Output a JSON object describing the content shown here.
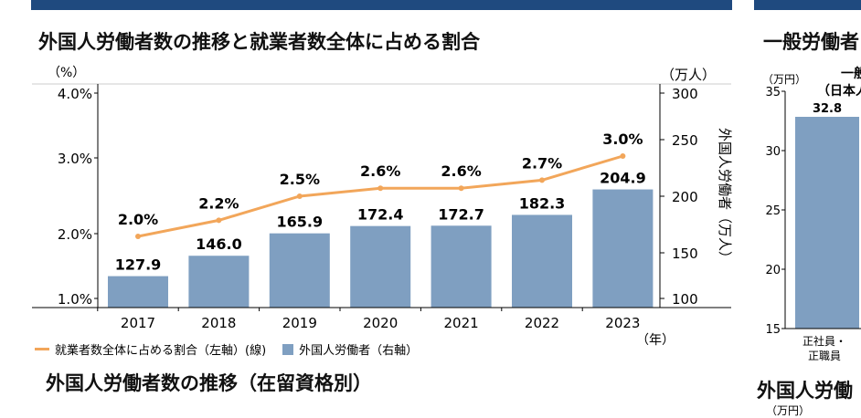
{
  "left_panel": {
    "title": "外国人労働者数の推移と就業者数全体に占める割合",
    "next_title": "外国人労働者数の推移（在留資格別）"
  },
  "right_panel": {
    "title": "一般労働者",
    "unit": "（万円）",
    "subtitle_line1": "一般",
    "subtitle_line2": "（日本人",
    "yticks": [
      "35",
      "30",
      "25",
      "20",
      "15"
    ],
    "bar_value": "32.8",
    "bar_value_num": 32.8,
    "bar_label_line1": "正社員・",
    "bar_label_line2": "正職員",
    "next_title": "外国人労働",
    "next_unit": "（万円）"
  },
  "colors": {
    "header": "#1f4a7f",
    "bar": "#7f9fc1",
    "line": "#f2a65a"
  },
  "chart_data": {
    "type": "bar+line",
    "title": "外国人労働者数の推移と就業者数全体に占める割合",
    "categories": [
      "2017",
      "2018",
      "2019",
      "2020",
      "2021",
      "2022",
      "2023"
    ],
    "x_unit": "（年）",
    "left_axis": {
      "unit": "（%）",
      "ticks": [
        "4.0%",
        "3.0%",
        "2.0%",
        "1.0%"
      ],
      "range": [
        1.0,
        4.0
      ]
    },
    "right_axis": {
      "unit": "（万人）",
      "label": "外国人労働者（万人）",
      "ticks": [
        "300",
        "250",
        "200",
        "150",
        "100"
      ],
      "range": [
        100,
        300
      ]
    },
    "series": [
      {
        "name": "就業者数全体に占める割合（左軸）(線)",
        "type": "line",
        "axis": "left",
        "values": [
          2.0,
          2.2,
          2.5,
          2.6,
          2.6,
          2.7,
          3.0
        ],
        "labels": [
          "2.0%",
          "2.2%",
          "2.5%",
          "2.6%",
          "2.6%",
          "2.7%",
          "3.0%"
        ]
      },
      {
        "name": "外国人労働者（右軸）",
        "type": "bar",
        "axis": "right",
        "values": [
          127.9,
          146.0,
          165.9,
          172.4,
          172.7,
          182.3,
          204.9
        ],
        "labels": [
          "127.9",
          "146.0",
          "165.9",
          "172.4",
          "172.7",
          "182.3",
          "204.9"
        ]
      }
    ],
    "legend": "bottom"
  }
}
